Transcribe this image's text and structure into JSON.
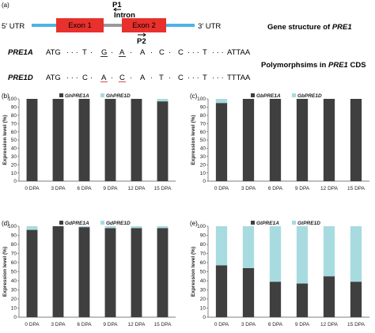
{
  "colors": {
    "primary": "#3f3f3f",
    "secondary": "#a8dbe0",
    "exon": "#e8302c",
    "utr": "#4ab4e6",
    "intron": "#9a9a9a",
    "mut": "#d42020"
  },
  "panel_a": {
    "label": "(a)",
    "utr5": "5′ UTR",
    "utr3": "3′ UTR",
    "exon1": "Exon 1",
    "exon2": "Exon 2",
    "intron": "Intron",
    "p1": "P1",
    "p2": "P2",
    "gene_structure_title": "Gene structure of",
    "gene_name": "PRE1",
    "polymorphisms_title": "Polymorphsims in",
    "cds_gene": "PRE1",
    "cds_suffix": "CDS",
    "alleles": [
      {
        "name": "PRE1A",
        "start": "ATG",
        "s1": "T",
        "m1": "G",
        "s2": "A",
        "m2": "A",
        "s3": "C",
        "s4": "C",
        "s5": "T",
        "end": "ATTAA"
      },
      {
        "name": "PRE1D",
        "start": "ATG",
        "s1": "C",
        "m1": "A",
        "s2": "A",
        "m2": "C",
        "s3": "T",
        "s4": "C",
        "s5": "T",
        "end": "TTTAA"
      }
    ]
  },
  "chart_data": [
    {
      "type": "bar",
      "panel": "(b)",
      "stacked": true,
      "ylabel": "Expression level (%)",
      "ylim": [
        0,
        100
      ],
      "yticks": [
        0,
        10,
        20,
        30,
        40,
        50,
        60,
        70,
        80,
        90,
        100
      ],
      "categories": [
        "0 DPA",
        "3 DPA",
        "6 DPA",
        "9 DPA",
        "12 DPA",
        "15 DPA"
      ],
      "series": [
        {
          "name": "GhPRE1A",
          "values": [
            100,
            100,
            100,
            100,
            100,
            97
          ]
        },
        {
          "name": "GhPRE1D",
          "values": [
            0,
            0,
            0,
            0,
            0,
            3
          ]
        }
      ]
    },
    {
      "type": "bar",
      "panel": "(c)",
      "stacked": true,
      "ylabel": "Expression level (%)",
      "ylim": [
        0,
        100
      ],
      "yticks": [
        0,
        10,
        20,
        30,
        40,
        50,
        60,
        70,
        80,
        90,
        100
      ],
      "categories": [
        "0 DPA",
        "3 DPA",
        "6 DPA",
        "9 DPA",
        "12 DPA",
        "15 DPA"
      ],
      "series": [
        {
          "name": "GbPRE1A",
          "values": [
            95,
            100,
            100,
            100,
            100,
            100
          ]
        },
        {
          "name": "GbPRE1D",
          "values": [
            5,
            0,
            0,
            0,
            0,
            0
          ]
        }
      ]
    },
    {
      "type": "bar",
      "panel": "(d)",
      "stacked": true,
      "ylabel": "Expression level (%)",
      "ylim": [
        0,
        100
      ],
      "yticks": [
        0,
        10,
        20,
        30,
        40,
        50,
        60,
        70,
        80,
        90,
        100
      ],
      "categories": [
        "0 DPA",
        "3 DPA",
        "6 DPA",
        "9 DPA",
        "12 DPA",
        "15 DPA"
      ],
      "series": [
        {
          "name": "GdPRE1A",
          "values": [
            96,
            100,
            99,
            98,
            98,
            98
          ]
        },
        {
          "name": "GdPRE1D",
          "values": [
            4,
            0,
            1,
            2,
            2,
            2
          ]
        }
      ]
    },
    {
      "type": "bar",
      "panel": "(e)",
      "stacked": true,
      "ylabel": "Expression level (%)",
      "ylim": [
        0,
        100
      ],
      "yticks": [
        0,
        10,
        20,
        30,
        40,
        50,
        60,
        70,
        80,
        90,
        100
      ],
      "categories": [
        "0 DPA",
        "3 DPA",
        "6 DPA",
        "9 DPA",
        "12 DPA",
        "15 DPA"
      ],
      "series": [
        {
          "name": "GtPRE1A",
          "values": [
            57,
            54,
            39,
            37,
            45,
            39
          ]
        },
        {
          "name": "GtPRE1D",
          "values": [
            43,
            46,
            61,
            63,
            55,
            61
          ]
        }
      ]
    }
  ]
}
